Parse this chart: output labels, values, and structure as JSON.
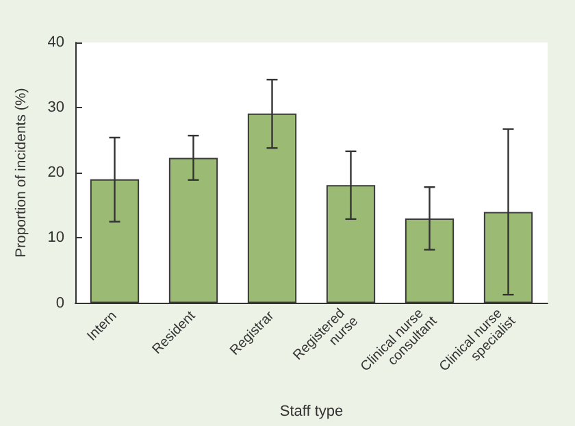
{
  "chart_data": {
    "type": "bar",
    "xlabel": "Staff type",
    "ylabel": "Proportion of incidents (%)",
    "categories": [
      "Intern",
      "Resident",
      "Registrar",
      "Registered nurse",
      "Clinical nurse consultant",
      "Clinical nurse specialist"
    ],
    "values": [
      19,
      22.3,
      29.1,
      18.1,
      13,
      14
    ],
    "errors": [
      [
        12.5,
        25.4
      ],
      [
        18.9,
        25.7
      ],
      [
        23.8,
        34.3
      ],
      [
        12.9,
        23.3
      ],
      [
        8.2,
        17.8
      ],
      [
        1.3,
        26.7
      ]
    ],
    "color": "#9bbb74",
    "ylim": [
      0,
      40
    ],
    "yticks": [
      0,
      10,
      20,
      30,
      40
    ],
    "grid": false
  }
}
